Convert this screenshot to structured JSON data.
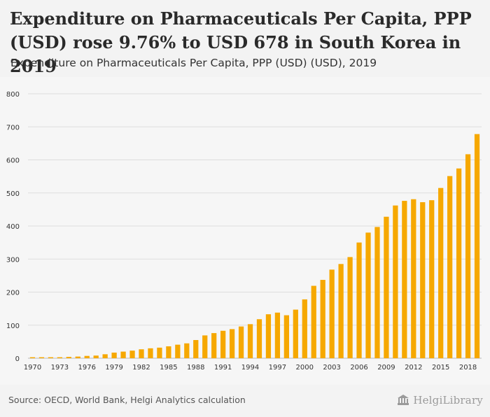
{
  "header": {
    "title": "Expenditure on Pharmaceuticals Per Capita, PPP (USD) rose 9.76% to USD 678 in South Korea in 2019",
    "subtitle": "Expenditure on Pharmaceuticals Per Capita, PPP (USD) (USD), 2019"
  },
  "footer": {
    "source": "Source: OECD, World Bank, Helgi Analytics calculation",
    "logo_text": "HelgiLibrary"
  },
  "colors": {
    "bar": "#f6a800",
    "grid": "#dddddd",
    "axis_text": "#333333"
  },
  "chart_data": {
    "type": "bar",
    "x": [
      1970,
      1971,
      1972,
      1973,
      1974,
      1975,
      1976,
      1977,
      1978,
      1979,
      1980,
      1981,
      1982,
      1983,
      1984,
      1985,
      1986,
      1987,
      1988,
      1989,
      1990,
      1991,
      1992,
      1993,
      1994,
      1995,
      1996,
      1997,
      1998,
      1999,
      2000,
      2001,
      2002,
      2003,
      2004,
      2005,
      2006,
      2007,
      2008,
      2009,
      2010,
      2011,
      2012,
      2013,
      2014,
      2015,
      2016,
      2017,
      2018,
      2019
    ],
    "values": [
      3,
      3,
      3,
      3,
      4,
      5,
      7,
      8,
      12,
      17,
      20,
      23,
      27,
      30,
      32,
      36,
      41,
      45,
      55,
      69,
      76,
      83,
      88,
      96,
      103,
      118,
      133,
      138,
      130,
      147,
      178,
      219,
      237,
      268,
      285,
      306,
      350,
      380,
      397,
      428,
      462,
      476,
      481,
      472,
      478,
      515,
      551,
      574,
      617,
      678
    ],
    "xticks": [
      "1970",
      "1973",
      "1976",
      "1979",
      "1982",
      "1985",
      "1988",
      "1991",
      "1994",
      "1997",
      "2000",
      "2003",
      "2006",
      "2009",
      "2012",
      "2015",
      "2018"
    ],
    "yticks": [
      "0",
      "100",
      "200",
      "300",
      "400",
      "500",
      "600",
      "700",
      "800"
    ],
    "ylim": [
      0,
      800
    ],
    "grid": true,
    "title": "Expenditure on Pharmaceuticals Per Capita, PPP (USD) rose 9.76% to USD 678 in South Korea in 2019"
  }
}
